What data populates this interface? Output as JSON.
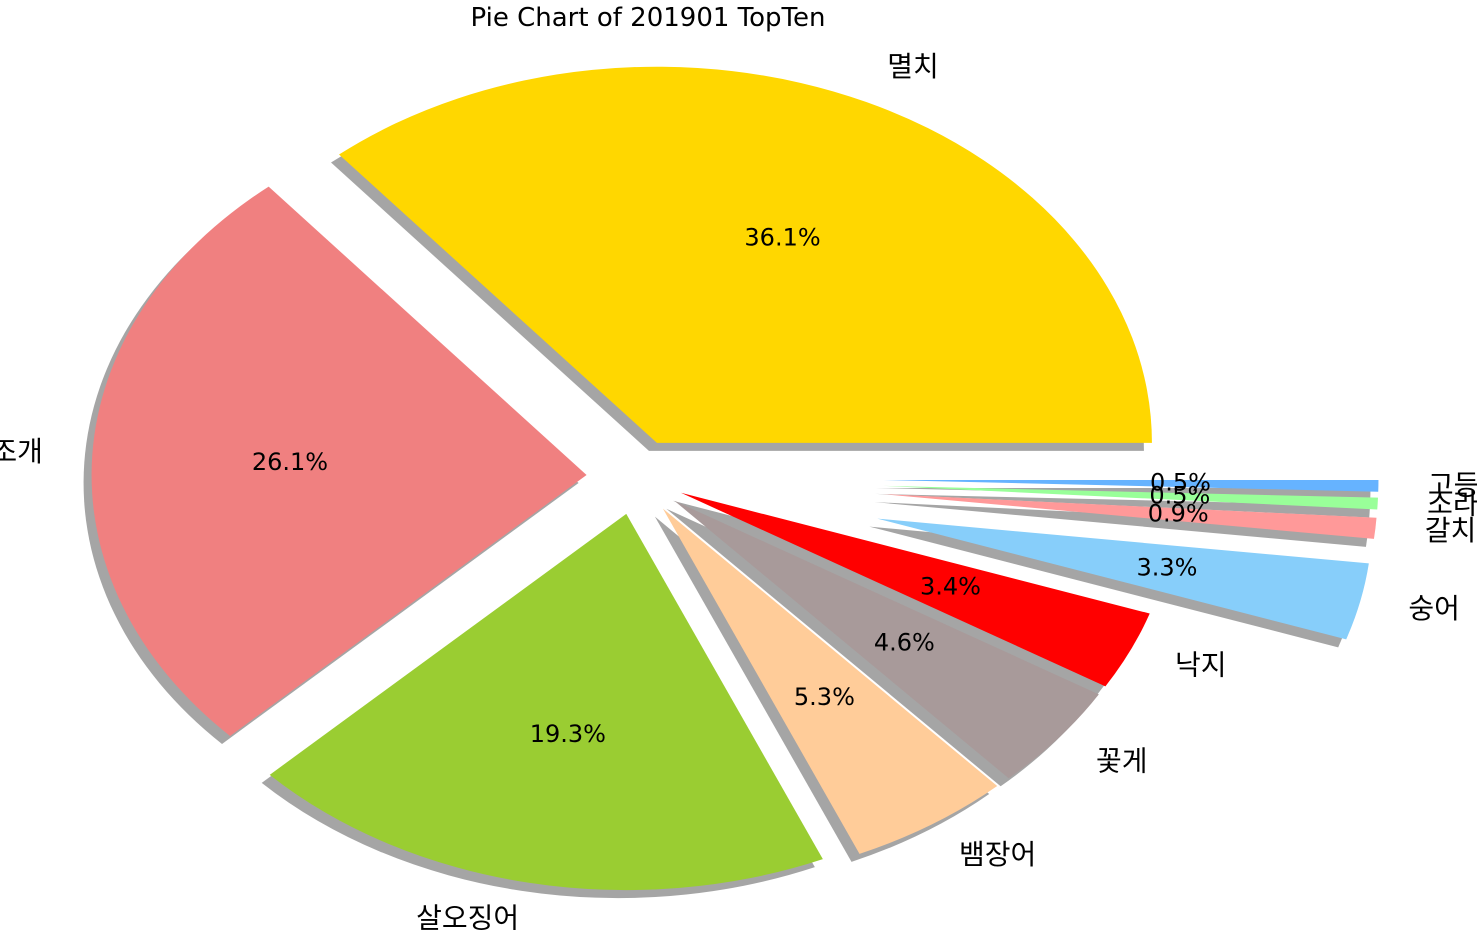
{
  "chart_data": {
    "type": "pie",
    "title": "Pie Chart of 201901 TopTen",
    "categories": [
      "멸치",
      "키조개",
      "살오징어",
      "뱀장어",
      "꽃게",
      "낙지",
      "숭어",
      "갈치류",
      "소라",
      "고등어"
    ],
    "values": [
      36.1,
      26.1,
      19.3,
      5.3,
      4.6,
      3.4,
      3.3,
      0.9,
      0.5,
      0.5
    ],
    "value_labels": [
      "36.1%",
      "26.1%",
      "19.3%",
      "5.3%",
      "4.6%",
      "3.4%",
      "3.3%",
      "0.9%",
      "0.5%",
      "0.5%"
    ],
    "explode": [
      0.1,
      0.1,
      0.1,
      0.1,
      0.1,
      0.1,
      0.5,
      0.5,
      0.5,
      0.5
    ],
    "colors": [
      "#ffd700",
      "#f08080",
      "#9acd32",
      "#ffcc99",
      "#a89a9a",
      "#ff0000",
      "#87cefa",
      "#ff9999",
      "#99ff99",
      "#66b3ff"
    ],
    "shadow": true,
    "start_angle_deg": 0,
    "direction": "counterclockwise",
    "legend": "none",
    "grid": false
  }
}
